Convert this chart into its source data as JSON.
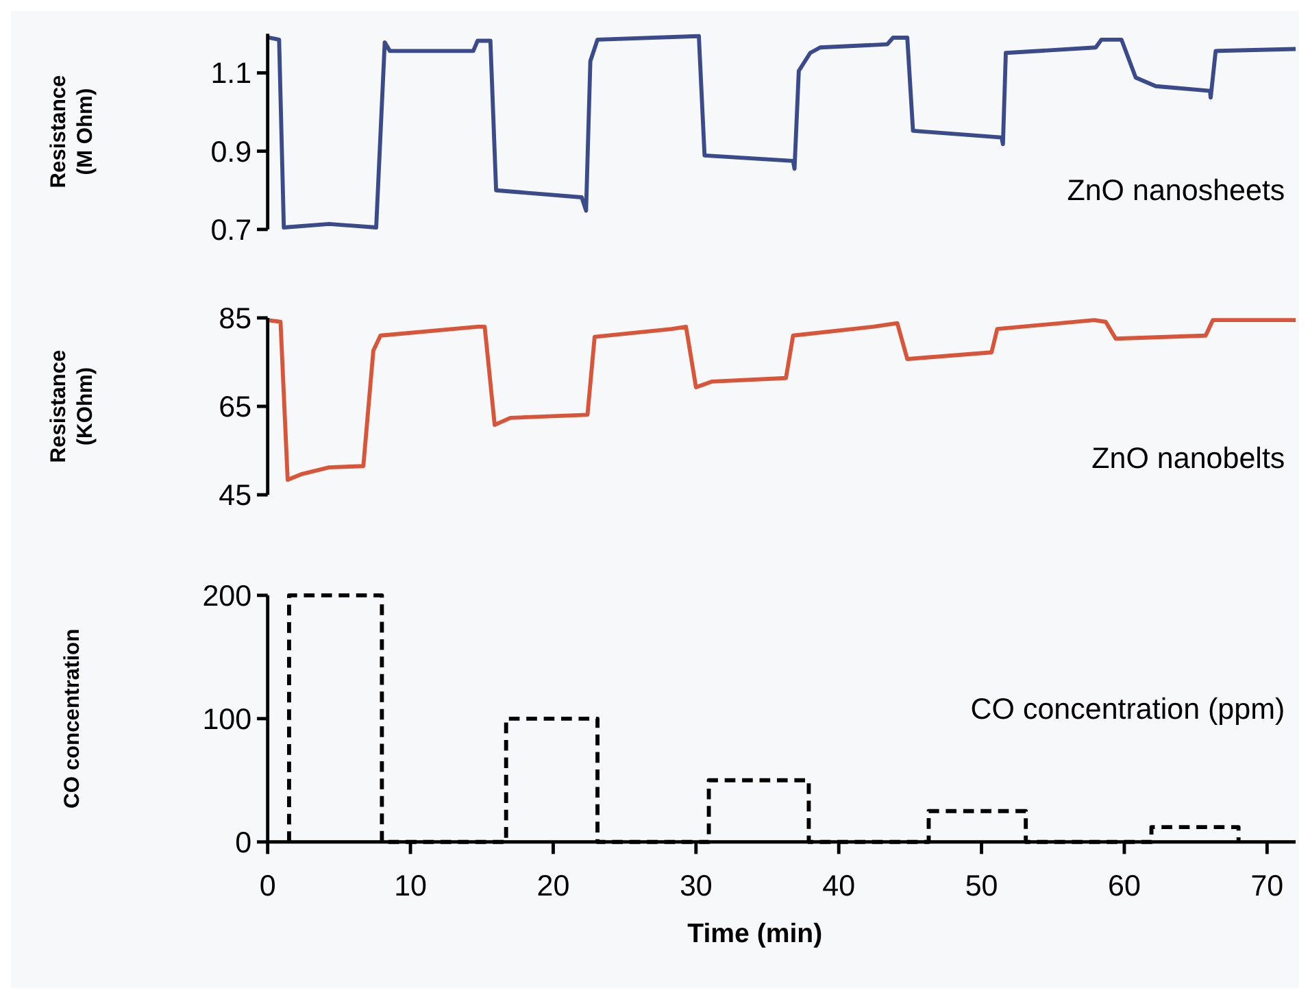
{
  "chart_data": [
    {
      "type": "line",
      "ylabel": "Resistance\n(M Ohm)",
      "xlim": [
        0,
        72
      ],
      "ylim": [
        0.7,
        1.2
      ],
      "yticks": [
        0.7,
        0.9,
        1.1
      ],
      "tick_labels": "y",
      "legend": false,
      "grid": false,
      "line_style": "solid",
      "series": [
        {
          "name": "ZnO nanosheets",
          "color": "#3b4a8a",
          "x": [
            0.09,
            0.8,
            1.13,
            4.3,
            7.6,
            8.2,
            8.56,
            14.4,
            14.7,
            15.6,
            16.0,
            22.0,
            22.3,
            22.6,
            23.1,
            30.2,
            30.6,
            36.8,
            36.9,
            37.2,
            38.0,
            38.7,
            43.4,
            43.8,
            44.8,
            45.2,
            51.4,
            51.5,
            51.7,
            58.0,
            58.4,
            59.8,
            60.8,
            62.2,
            66.0,
            66.05,
            66.4,
            72.0
          ],
          "values": [
            1.19,
            1.185,
            0.705,
            0.714,
            0.705,
            1.178,
            1.156,
            1.156,
            1.182,
            1.182,
            0.8,
            0.782,
            0.748,
            1.13,
            1.185,
            1.194,
            0.889,
            0.875,
            0.855,
            1.105,
            1.151,
            1.165,
            1.173,
            1.19,
            1.19,
            0.952,
            0.935,
            0.918,
            1.151,
            1.165,
            1.185,
            1.185,
            1.088,
            1.066,
            1.054,
            1.037,
            1.156,
            1.161
          ]
        }
      ]
    },
    {
      "type": "line",
      "ylabel": "Resistance\n(KOhm)",
      "xlim": [
        0,
        72
      ],
      "ylim": [
        45,
        85
      ],
      "yticks": [
        45,
        65,
        85
      ],
      "tick_labels": "y",
      "legend": false,
      "grid": false,
      "line_style": "solid",
      "series": [
        {
          "name": "ZnO nanobelts",
          "color": "#d9553a",
          "x": [
            0,
            0.9,
            1.4,
            2.4,
            4.3,
            6.7,
            7.4,
            7.9,
            14.7,
            15.2,
            15.9,
            17.0,
            22.4,
            22.9,
            28.3,
            29.3,
            30.0,
            31.1,
            36.3,
            36.8,
            42.4,
            44.1,
            44.8,
            50.7,
            51.1,
            57.9,
            58.7,
            59.4,
            65.7,
            66.2,
            72.0
          ],
          "values": [
            84.5,
            84.1,
            48.4,
            49.7,
            51.2,
            51.5,
            77.6,
            81.0,
            83.0,
            83.0,
            60.8,
            62.4,
            63.1,
            80.7,
            82.5,
            83.0,
            69.3,
            70.6,
            71.4,
            81.0,
            83.0,
            83.8,
            75.7,
            77.2,
            82.5,
            84.5,
            84.1,
            80.3,
            81.0,
            84.5,
            84.5
          ]
        }
      ]
    },
    {
      "type": "line",
      "xlabel": "Time (min)",
      "ylabel": "CO concentration",
      "xlim": [
        0,
        72
      ],
      "ylim": [
        0,
        200
      ],
      "xticks": [
        0,
        10,
        20,
        30,
        40,
        50,
        60,
        70
      ],
      "yticks": [
        0,
        100,
        200
      ],
      "legend": false,
      "grid": false,
      "line_style": "dashed",
      "series": [
        {
          "name": "CO concentration (ppm)",
          "color": "#000000",
          "x": [
            1.5,
            1.5,
            8.0,
            8.0,
            16.7,
            16.7,
            23.1,
            23.1,
            30.9,
            30.9,
            37.9,
            37.9,
            46.3,
            46.3,
            53.1,
            53.1,
            61.9,
            61.9,
            68.0,
            68.0
          ],
          "values": [
            0,
            200,
            200,
            0,
            0,
            100,
            100,
            0,
            0,
            50,
            50,
            0,
            0,
            25,
            25,
            0,
            0,
            12,
            12,
            0
          ]
        }
      ]
    }
  ]
}
